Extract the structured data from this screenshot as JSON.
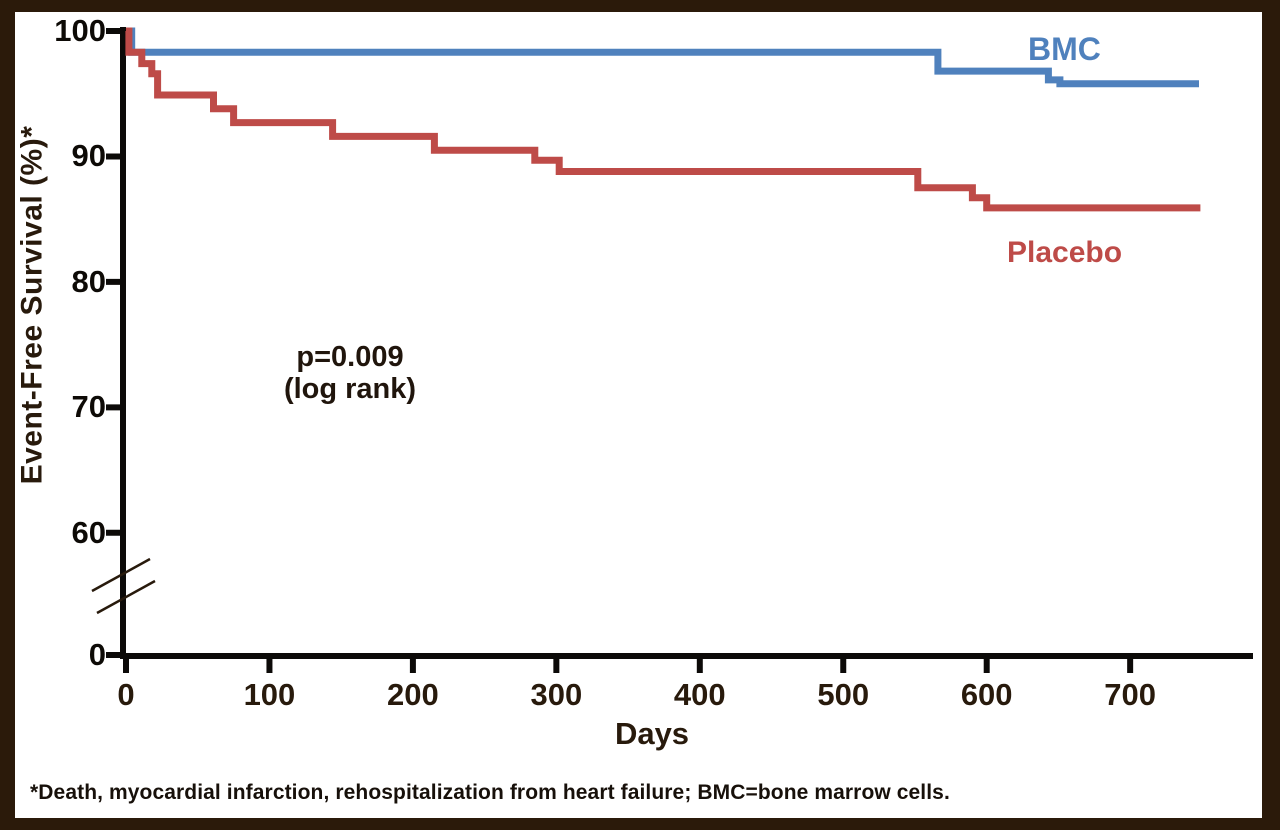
{
  "frame": {
    "border_color": "#2b1a0a",
    "background": "#ffffff"
  },
  "colors": {
    "axis": "#0c0a08",
    "tick_text": "#0d0a06",
    "title_text": "#281a0c",
    "annotation_text": "#20150c",
    "footnote_text": "#17100a",
    "bmc_blue": "#4f81bd",
    "placebo_red": "#be4b48"
  },
  "chart_data": {
    "type": "line",
    "subtype": "kaplan-meier-step",
    "title": "",
    "xlabel": "Days",
    "ylabel": "Event-Free Survival (%)*",
    "x_ticks": [
      0,
      100,
      200,
      300,
      400,
      500,
      600,
      700
    ],
    "y_ticks": [
      100,
      90,
      80,
      70,
      60,
      0
    ],
    "y_axis_break_between": [
      0,
      60
    ],
    "xlim": [
      0,
      790
    ],
    "ylim_shown": [
      60,
      100
    ],
    "grid": false,
    "legend_position": "labels-on-plot",
    "annotation": {
      "line1": "p=0.009",
      "line2": "(log rank)"
    },
    "series": [
      {
        "name": "BMC",
        "color": "#4f81bd",
        "steps": [
          [
            0,
            100
          ],
          [
            4,
            98.3
          ],
          [
            566,
            96.8
          ],
          [
            643,
            96.1
          ],
          [
            651,
            95.8
          ],
          [
            748,
            95.8
          ]
        ]
      },
      {
        "name": "Placebo",
        "color": "#be4b48",
        "steps": [
          [
            0,
            100
          ],
          [
            2,
            98.3
          ],
          [
            11,
            97.4
          ],
          [
            18,
            96.6
          ],
          [
            22,
            94.9
          ],
          [
            61,
            93.8
          ],
          [
            75,
            92.7
          ],
          [
            144,
            91.6
          ],
          [
            215,
            90.5
          ],
          [
            285,
            89.7
          ],
          [
            302,
            88.8
          ],
          [
            552,
            87.5
          ],
          [
            590,
            86.7
          ],
          [
            600,
            85.9
          ],
          [
            749,
            85.9
          ]
        ]
      }
    ],
    "footnote": "*Death, myocardial infarction, rehospitalization from heart failure; BMC=bone marrow cells."
  }
}
